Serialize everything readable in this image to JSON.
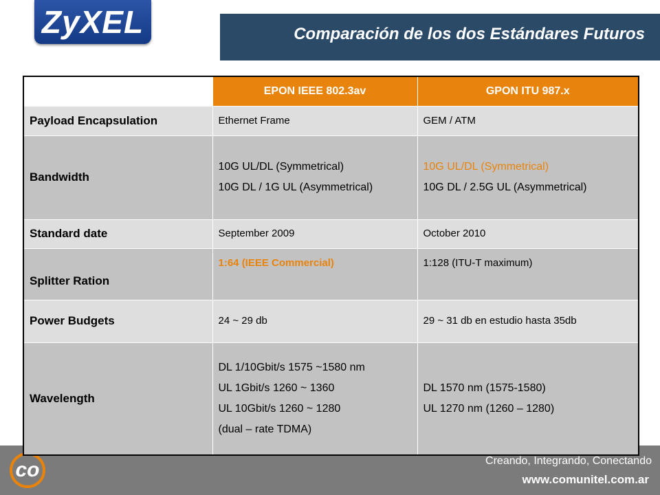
{
  "header": {
    "logo": "ZyXEL",
    "title": "Comparación de los dos Estándares Futuros"
  },
  "table": {
    "columns": [
      "EPON IEEE 802.3av",
      "GPON ITU 987.x"
    ],
    "rows": [
      {
        "label": "Payload Encapsulation",
        "cells": [
          [
            "Ethernet Frame"
          ],
          [
            "GEM / ATM"
          ]
        ]
      },
      {
        "label": "Bandwidth",
        "cells": [
          [
            "10G UL/DL (Symmetrical)",
            "10G DL / 1G UL (Asymmetrical)"
          ],
          [
            "10G UL/DL (Symmetrical)",
            "10G DL / 2.5G UL (Asymmetrical)"
          ]
        ]
      },
      {
        "label": "Standard date",
        "cells": [
          [
            "September 2009"
          ],
          [
            "October 2010"
          ]
        ]
      },
      {
        "label": "Splitter Ration",
        "cells": [
          [
            "1:64 (IEEE Commercial)"
          ],
          [
            "1:128 (ITU-T maximum)"
          ]
        ]
      },
      {
        "label": "Power Budgets",
        "cells": [
          [
            "24 ~ 29 db"
          ],
          [
            "29 ~ 31 db en estudio hasta 35db"
          ]
        ]
      },
      {
        "label": "Wavelength",
        "cells": [
          [
            "DL 1/10Gbit/s 1575 ~1580 nm",
            "UL 1Gbit/s 1260 ~ 1360",
            "UL 10Gbit/s 1260 ~ 1280",
            "(dual – rate TDMA)"
          ],
          [
            "DL 1570 nm  (1575-1580)",
            "UL 1270 nm (1260 – 1280)"
          ]
        ]
      }
    ]
  },
  "footer": {
    "logo": "co",
    "slogan": "Creando, Integrando, Conectando",
    "url": "www.comunitel.com.ar"
  }
}
